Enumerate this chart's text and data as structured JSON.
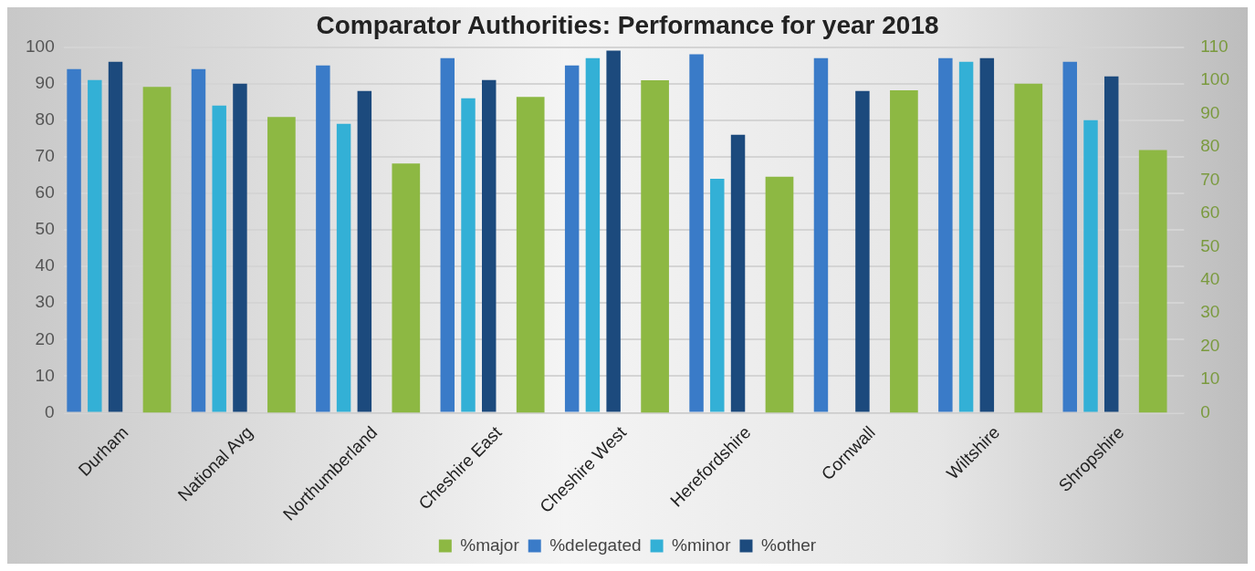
{
  "chart_data": {
    "type": "bar",
    "title": "Comparator Authorities: Performance for year 2018",
    "categories": [
      "Durham",
      "National Avg",
      "Northumberland",
      "Cheshire East",
      "Cheshire West",
      "Herefordshire",
      "Cornwall",
      "Wiltshire",
      "Shropshire"
    ],
    "series": [
      {
        "name": "%delegated",
        "color": "#3a7bc8",
        "values": [
          94,
          94,
          95,
          97,
          95,
          98,
          97,
          97,
          96
        ]
      },
      {
        "name": "%minor",
        "color": "#33b0d6",
        "values": [
          91,
          84,
          79,
          86,
          97,
          64,
          null,
          96,
          80
        ]
      },
      {
        "name": "%other",
        "color": "#1c4a7d",
        "values": [
          96,
          90,
          88,
          91,
          99,
          76,
          88,
          97,
          92
        ]
      },
      {
        "name": "%major",
        "color": "#8db843",
        "axis": "y2",
        "values": [
          98,
          89,
          75,
          95,
          100,
          71,
          97,
          99,
          79
        ]
      }
    ],
    "ylim": [
      0,
      100
    ],
    "yticks": [
      0,
      10,
      20,
      30,
      40,
      50,
      60,
      70,
      80,
      90,
      100
    ],
    "y2lim": [
      0,
      110
    ],
    "y2ticks": [
      0,
      10,
      20,
      30,
      40,
      50,
      60,
      70,
      80,
      90,
      100,
      110
    ],
    "grid": "y",
    "legend": "bottom"
  }
}
